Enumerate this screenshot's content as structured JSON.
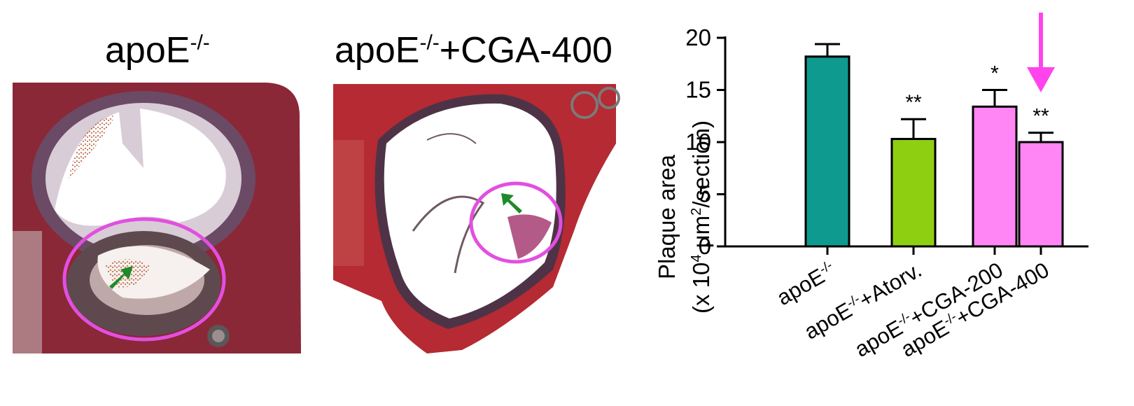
{
  "panels": [
    {
      "base": "apoE",
      "sup": "-/-",
      "suffix": ""
    },
    {
      "base": "apoE",
      "sup": "-/-",
      "suffix": "+CGA-400"
    }
  ],
  "chart_data": {
    "type": "bar",
    "ylabel_line1": "Plaque area",
    "ylabel_line2_pre": "(x 10",
    "ylabel_line2_sup1": "4",
    "ylabel_line2_mid": " μm",
    "ylabel_line2_sup2": "2",
    "ylabel_line2_post": "/section)",
    "ylim": [
      0,
      20
    ],
    "yticks": [
      0,
      5,
      10,
      15,
      20
    ],
    "categories": [
      {
        "base": "apoE",
        "sup": "-/-",
        "suffix": ""
      },
      {
        "base": "apoE",
        "sup": "-/-",
        "suffix": "+Atorv."
      },
      {
        "base": "apoE",
        "sup": "-/-",
        "suffix": "+CGA-200"
      },
      {
        "base": "apoE",
        "sup": "-/-",
        "suffix": "+CGA-400"
      }
    ],
    "values": [
      18.2,
      10.3,
      13.4,
      10.0
    ],
    "errors": [
      1.2,
      1.9,
      1.6,
      0.9
    ],
    "significance": [
      "",
      "**",
      "*",
      "**"
    ],
    "colors": [
      "#0e9a8e",
      "#8fcf12",
      "#ff86f4",
      "#ff86f4"
    ],
    "highlight_arrow_color": "#ff44ee",
    "grid": false
  }
}
